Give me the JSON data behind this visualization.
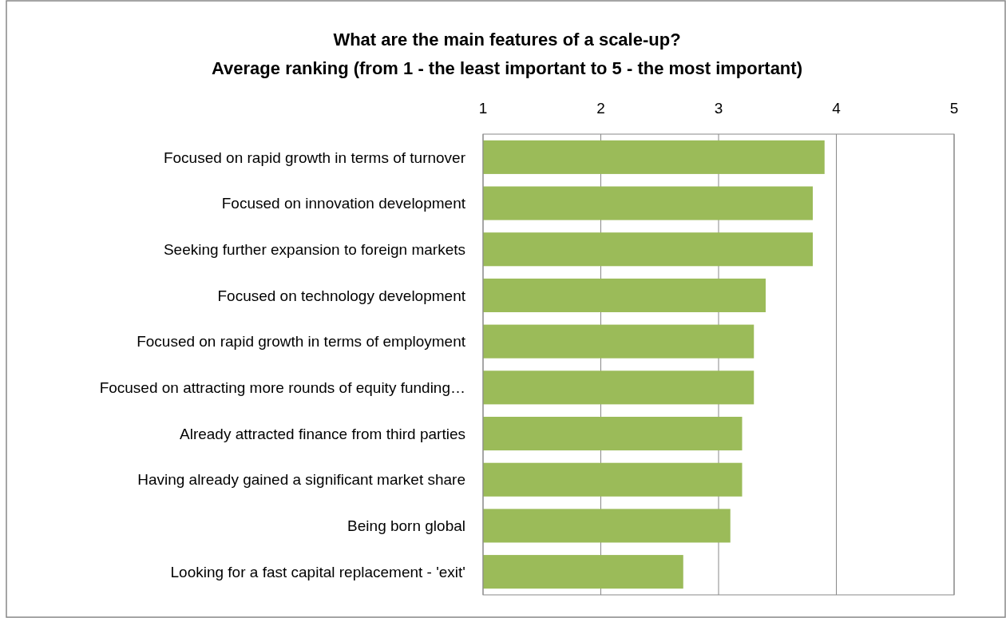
{
  "chart_data": {
    "type": "bar",
    "orientation": "horizontal",
    "title": "What are the main features of a scale-up?",
    "subtitle": "Average ranking (from 1 - the least important to 5 - the most important)",
    "categories": [
      "Focused on rapid growth in terms of turnover",
      "Focused on innovation development",
      "Seeking further expansion to foreign markets",
      "Focused on technology development",
      "Focused on rapid growth in terms of employment",
      "Focused on attracting more rounds of equity funding…",
      "Already attracted finance from third parties",
      "Having already gained a significant market share",
      "Being born global",
      "Looking for a fast capital replacement - 'exit'"
    ],
    "values": [
      3.9,
      3.8,
      3.8,
      3.4,
      3.3,
      3.3,
      3.2,
      3.2,
      3.1,
      2.7
    ],
    "color": "#9bbb59",
    "xlim": [
      1,
      5
    ],
    "xticks": [
      1,
      2,
      3,
      4,
      5
    ],
    "grid": "x"
  }
}
